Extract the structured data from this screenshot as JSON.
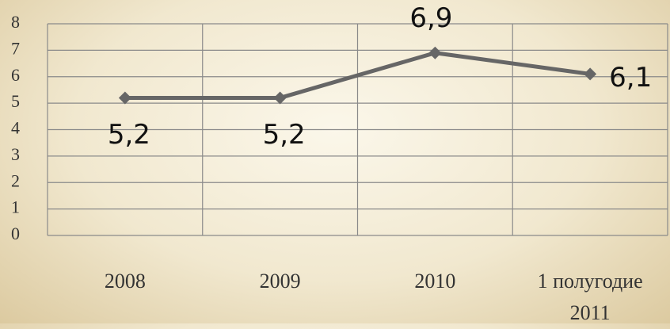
{
  "chart_data": {
    "type": "line",
    "categories": [
      "2008",
      "2009",
      "2010",
      "1 полугодие 2011"
    ],
    "series": [
      {
        "color": "#666666",
        "values": [
          5.2,
          5.2,
          6.9,
          6.1
        ],
        "value_labels": [
          "5,2",
          "5,2",
          "6,9",
          "6,1"
        ]
      }
    ],
    "ylim": [
      0,
      8
    ],
    "yticks": [
      0,
      1,
      2,
      3,
      4,
      5,
      6,
      7,
      8
    ],
    "grid": true
  }
}
